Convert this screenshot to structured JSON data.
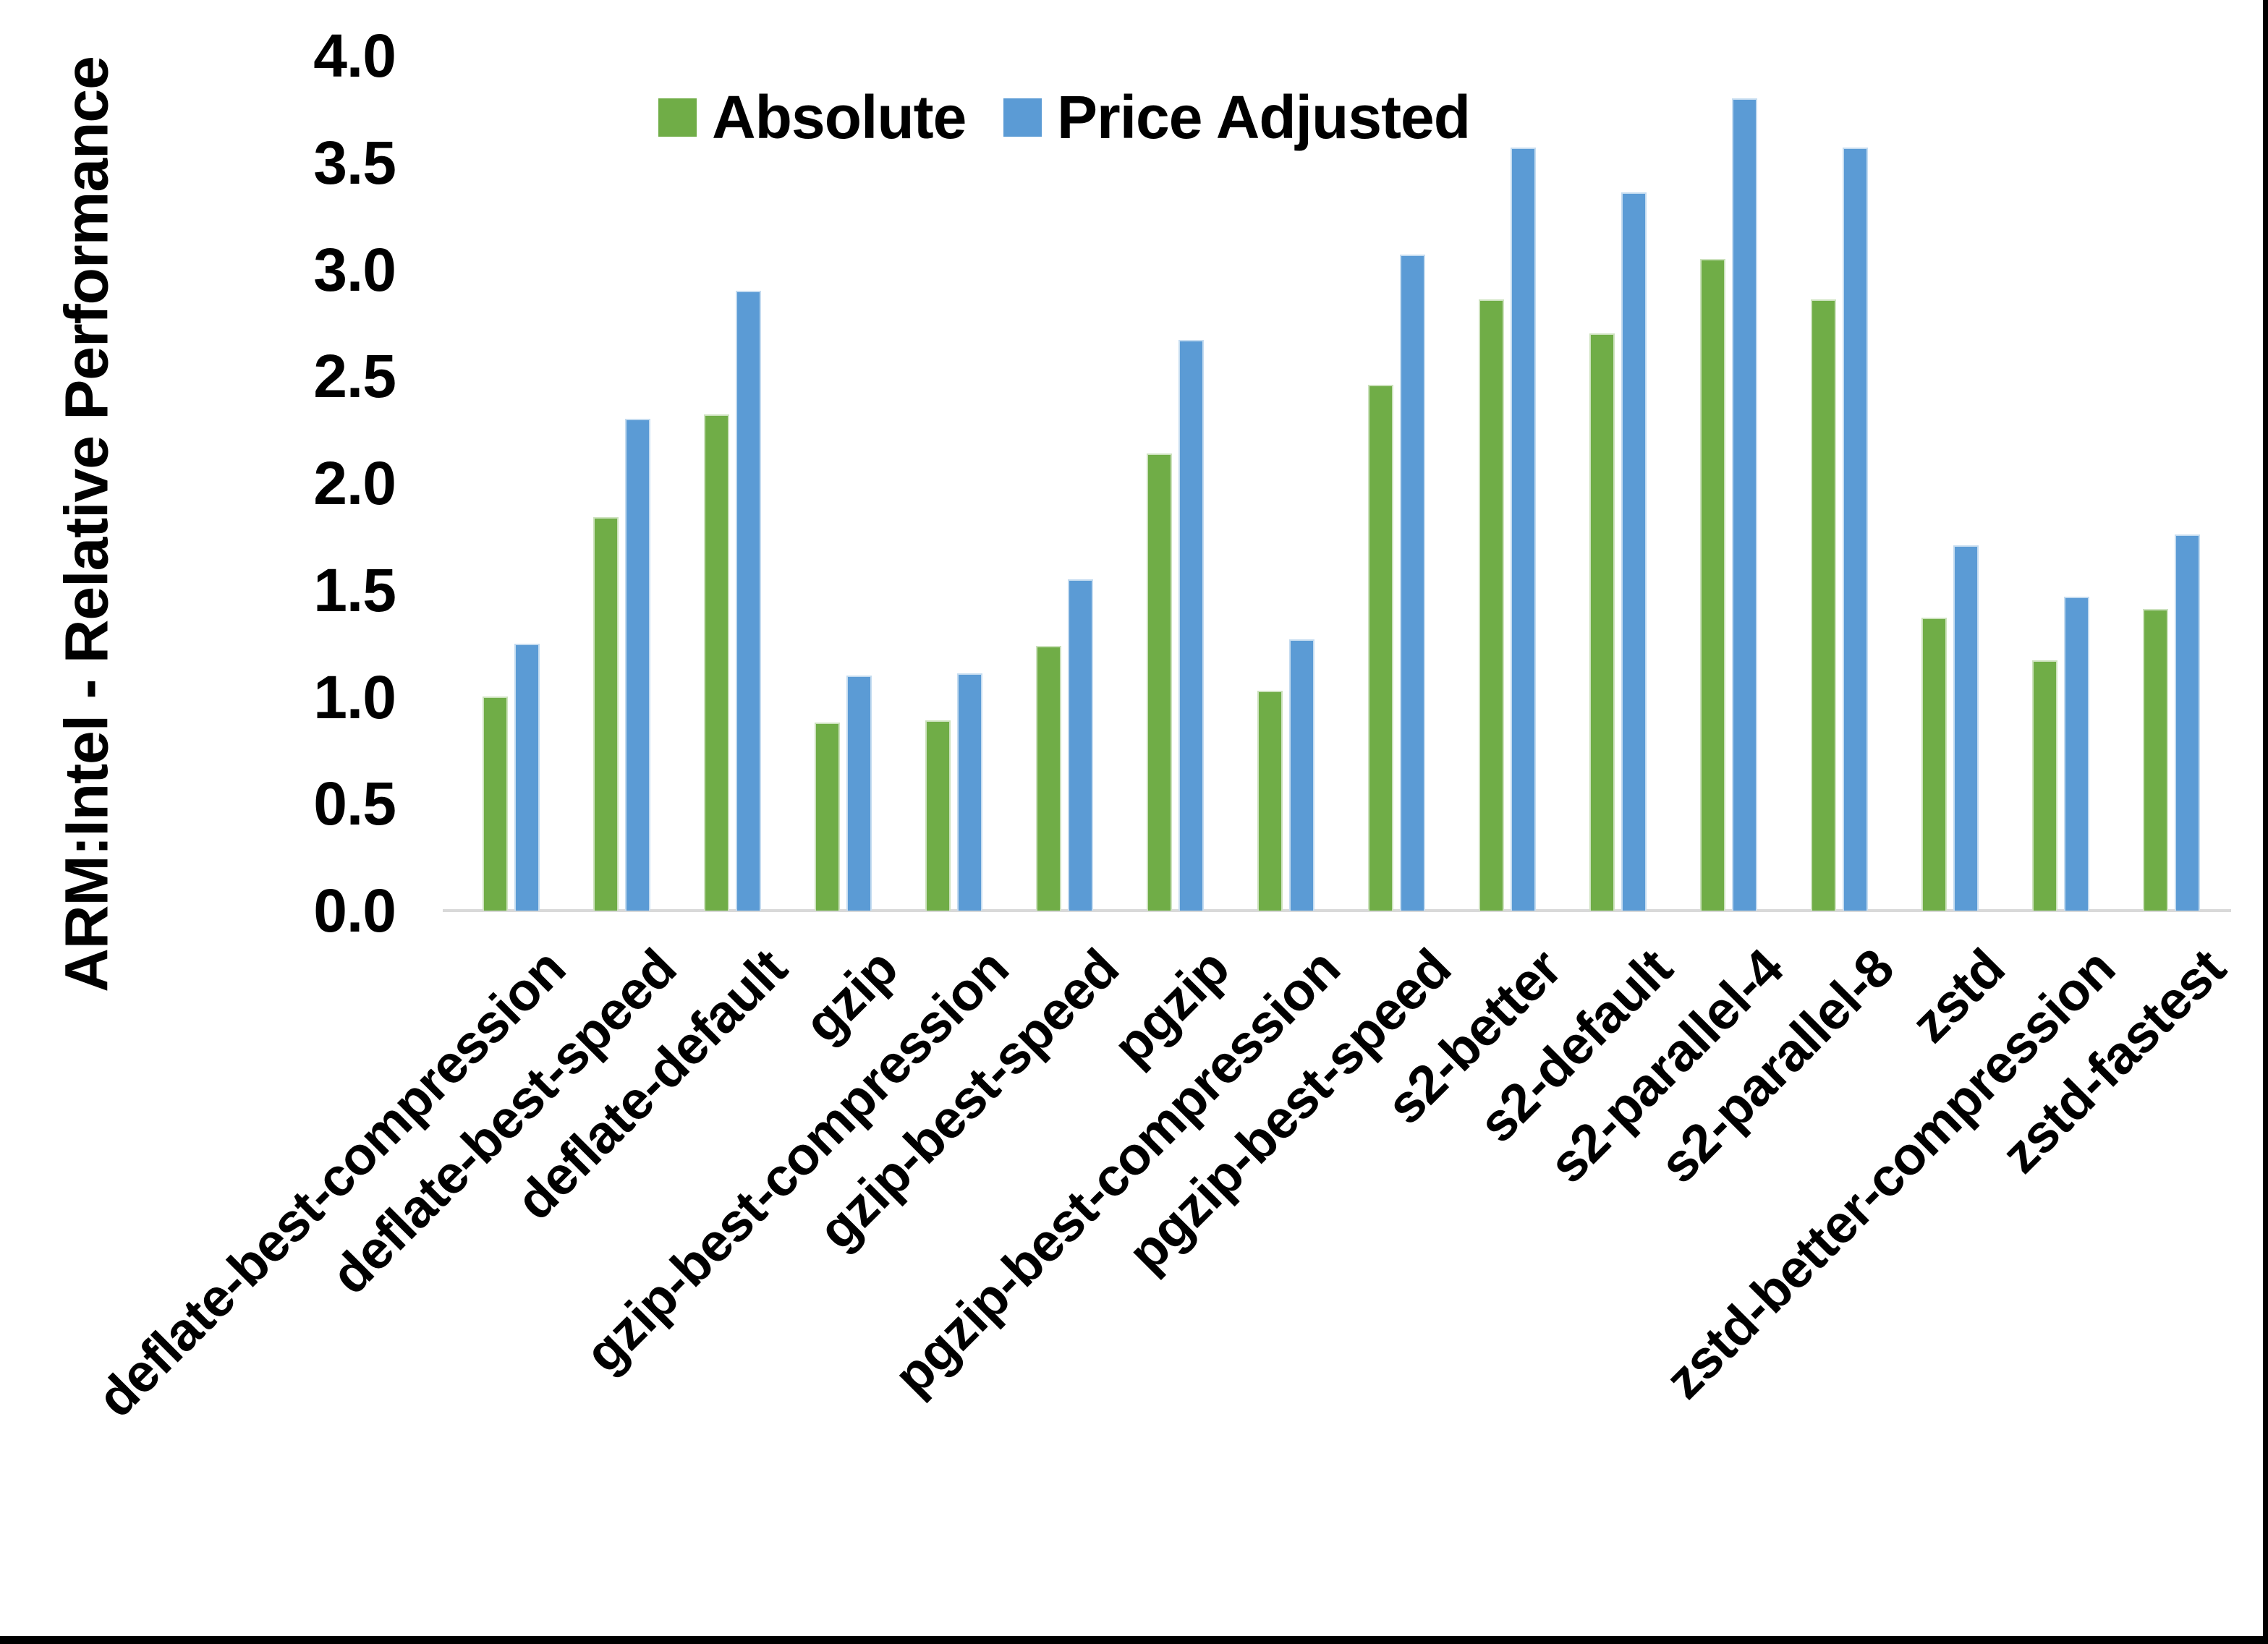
{
  "chart_data": {
    "type": "bar",
    "title": "",
    "ylabel": "ARM:Intel - Relative Performance",
    "xlabel": "",
    "categories": [
      "deflate-best-compression",
      "deflate-best-speed",
      "deflate-default",
      "gzip",
      "gzip-best-compression",
      "gzip-best-speed",
      "pgzip",
      "pgzip-best-compression",
      "pgzip-best-speed",
      "s2-better",
      "s2-default",
      "s2-parallel-4",
      "s2-parallel-8",
      "zstd",
      "zstd-better-compression",
      "zstd-fastest"
    ],
    "series": [
      {
        "name": "Absolute",
        "color": "#70AD47",
        "values": [
          1.0,
          1.84,
          2.32,
          0.88,
          0.89,
          1.24,
          2.14,
          1.03,
          2.46,
          2.86,
          2.7,
          3.05,
          2.86,
          1.37,
          1.17,
          1.41
        ]
      },
      {
        "name": "Price Adjusted",
        "color": "#5B9BD5",
        "values": [
          1.25,
          2.3,
          2.9,
          1.1,
          1.11,
          1.55,
          2.67,
          1.27,
          3.07,
          3.57,
          3.36,
          3.8,
          3.57,
          1.71,
          1.47,
          1.76
        ]
      }
    ],
    "ylim": [
      0,
      4
    ],
    "ytick_step": 0.5,
    "ytick_labels": [
      "0.0",
      "0.5",
      "1.0",
      "1.5",
      "2.0",
      "2.5",
      "3.0",
      "3.5",
      "4.0"
    ],
    "grid": false,
    "legend_position": "top",
    "axis_line_color": "#D9D9D9",
    "background": "#FFFFFF",
    "frame_color": "#000000"
  }
}
